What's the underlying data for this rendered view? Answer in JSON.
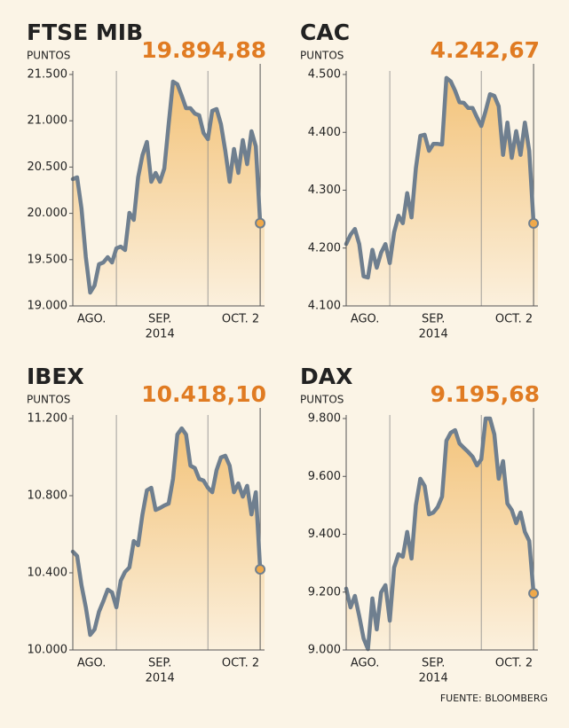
{
  "chart_data": [
    {
      "type": "line",
      "title": "FTSE MIB",
      "subtitle": "PUNTOS",
      "color": "#6f7f8f",
      "values": [
        20370,
        20389,
        20054,
        19527,
        19144,
        19220,
        19450,
        19469,
        19527,
        19469,
        19622,
        19641,
        19603,
        20006,
        19929,
        20389,
        20628,
        20772,
        20341,
        20437,
        20341,
        20485,
        20964,
        21423,
        21395,
        21270,
        21136,
        21136,
        21078,
        21059,
        20868,
        20801,
        21107,
        21126,
        20964,
        20676,
        20341,
        20695,
        20437,
        20791,
        20532,
        20887,
        20724,
        19894.88
      ],
      "value_labels": [
        null,
        null,
        null,
        null,
        null,
        null,
        null,
        null,
        null,
        null,
        null,
        null,
        null,
        null,
        null,
        null,
        null,
        null,
        null,
        null,
        null,
        null,
        null,
        null,
        null,
        null,
        null,
        null,
        null,
        null,
        null,
        null,
        null,
        null,
        null,
        null,
        null,
        null,
        null,
        null,
        null,
        null,
        null,
        "19.894,88"
      ],
      "xlim": [
        0,
        44
      ],
      "xgrid": [
        10,
        31
      ],
      "xticks": [
        {
          "value": 4.3,
          "label": "AGO."
        },
        {
          "value": 20,
          "label": "SEP."
        },
        {
          "value": 38.5,
          "label": "OCT. 2"
        }
      ],
      "x_sublabel": "2014",
      "ylim": [
        19000,
        21500
      ],
      "yticks": [
        {
          "value": 19000,
          "label": "19.000"
        },
        {
          "value": 19500,
          "label": "19.500"
        },
        {
          "value": 20000,
          "label": "20.000"
        },
        {
          "value": 20500,
          "label": "20.500"
        },
        {
          "value": 21000,
          "label": "21.000"
        },
        {
          "value": 21500,
          "label": "21.500"
        }
      ]
    },
    {
      "type": "line",
      "title": "CAC",
      "subtitle": "PUNTOS",
      "color": "#6f7f8f",
      "values": [
        4207,
        4223,
        4233,
        4207,
        4151,
        4149,
        4197,
        4166,
        4192,
        4207,
        4174,
        4227,
        4256,
        4243,
        4295,
        4253,
        4338,
        4394,
        4396,
        4368,
        4380,
        4380,
        4379,
        4494,
        4488,
        4472,
        4452,
        4451,
        4442,
        4442,
        4426,
        4411,
        4437,
        4466,
        4463,
        4445,
        4361,
        4417,
        4356,
        4402,
        4361,
        4417,
        4368,
        4242.67
      ],
      "value_labels": [
        null,
        null,
        null,
        null,
        null,
        null,
        null,
        null,
        null,
        null,
        null,
        null,
        null,
        null,
        null,
        null,
        null,
        null,
        null,
        null,
        null,
        null,
        null,
        null,
        null,
        null,
        null,
        null,
        null,
        null,
        null,
        null,
        null,
        null,
        null,
        null,
        null,
        null,
        null,
        null,
        null,
        null,
        null,
        "4.242,67"
      ],
      "xlim": [
        0,
        44
      ],
      "xgrid": [
        10,
        31
      ],
      "xticks": [
        {
          "value": 4.3,
          "label": "AGO."
        },
        {
          "value": 20,
          "label": "SEP."
        },
        {
          "value": 38.5,
          "label": "OCT. 2"
        }
      ],
      "x_sublabel": "2014",
      "ylim": [
        4100,
        4500
      ],
      "yticks": [
        {
          "value": 4100,
          "label": "4.100"
        },
        {
          "value": 4200,
          "label": "4.200"
        },
        {
          "value": 4300,
          "label": "4.300"
        },
        {
          "value": 4400,
          "label": "4.400"
        },
        {
          "value": 4500,
          "label": "4.500"
        }
      ]
    },
    {
      "type": "line",
      "title": "IBEX",
      "subtitle": "PUNTOS",
      "color": "#6f7f8f",
      "values": [
        10510,
        10487,
        10336,
        10221,
        10078,
        10106,
        10198,
        10253,
        10313,
        10299,
        10221,
        10359,
        10405,
        10428,
        10565,
        10543,
        10703,
        10828,
        10841,
        10726,
        10736,
        10749,
        10759,
        10887,
        11117,
        11149,
        11117,
        10956,
        10943,
        10887,
        10878,
        10841,
        10818,
        10933,
        10998,
        11007,
        10956,
        10818,
        10864,
        10795,
        10851,
        10703,
        10818,
        10418.1
      ],
      "value_labels": [
        null,
        null,
        null,
        null,
        null,
        null,
        null,
        null,
        null,
        null,
        null,
        null,
        null,
        null,
        null,
        null,
        null,
        null,
        null,
        null,
        null,
        null,
        null,
        null,
        null,
        null,
        null,
        null,
        null,
        null,
        null,
        null,
        null,
        null,
        null,
        null,
        null,
        null,
        null,
        null,
        null,
        null,
        null,
        "10.418,10"
      ],
      "xlim": [
        0,
        44
      ],
      "xgrid": [
        10,
        31
      ],
      "xticks": [
        {
          "value": 4.3,
          "label": "AGO."
        },
        {
          "value": 20,
          "label": "SEP."
        },
        {
          "value": 38.5,
          "label": "OCT. 2"
        }
      ],
      "x_sublabel": "2014",
      "ylim": [
        10000,
        11200
      ],
      "yticks": [
        {
          "value": 10000,
          "label": "10.000"
        },
        {
          "value": 10400,
          "label": "10.400"
        },
        {
          "value": 10800,
          "label": "10.800"
        },
        {
          "value": 11200,
          "label": "11.200"
        }
      ]
    },
    {
      "type": "line",
      "title": "DAX",
      "subtitle": "PUNTOS",
      "color": "#6f7f8f",
      "values": [
        9212,
        9147,
        9187,
        9117,
        9040,
        9003,
        9178,
        9071,
        9199,
        9224,
        9101,
        9285,
        9331,
        9322,
        9408,
        9316,
        9500,
        9592,
        9567,
        9469,
        9475,
        9494,
        9530,
        9723,
        9751,
        9760,
        9714,
        9699,
        9684,
        9668,
        9638,
        9659,
        9800,
        9800,
        9745,
        9592,
        9653,
        9506,
        9484,
        9438,
        9475,
        9408,
        9377,
        9195.68
      ],
      "value_labels": [
        null,
        null,
        null,
        null,
        null,
        null,
        null,
        null,
        null,
        null,
        null,
        null,
        null,
        null,
        null,
        null,
        null,
        null,
        null,
        null,
        null,
        null,
        null,
        null,
        null,
        null,
        null,
        null,
        null,
        null,
        null,
        null,
        null,
        null,
        null,
        null,
        null,
        null,
        null,
        null,
        null,
        null,
        null,
        "9.195,68"
      ],
      "xlim": [
        0,
        44
      ],
      "xgrid": [
        10,
        31
      ],
      "xticks": [
        {
          "value": 4.3,
          "label": "AGO."
        },
        {
          "value": 20,
          "label": "SEP."
        },
        {
          "value": 38.5,
          "label": "OCT. 2"
        }
      ],
      "x_sublabel": "2014",
      "ylim": [
        9000,
        9800
      ],
      "yticks": [
        {
          "value": 9000,
          "label": "9.000"
        },
        {
          "value": 9200,
          "label": "9.200"
        },
        {
          "value": 9400,
          "label": "9.400"
        },
        {
          "value": 9600,
          "label": "9.600"
        },
        {
          "value": 9800,
          "label": "9.800"
        }
      ]
    }
  ],
  "source": "FUENTE: BLOOMBERG"
}
